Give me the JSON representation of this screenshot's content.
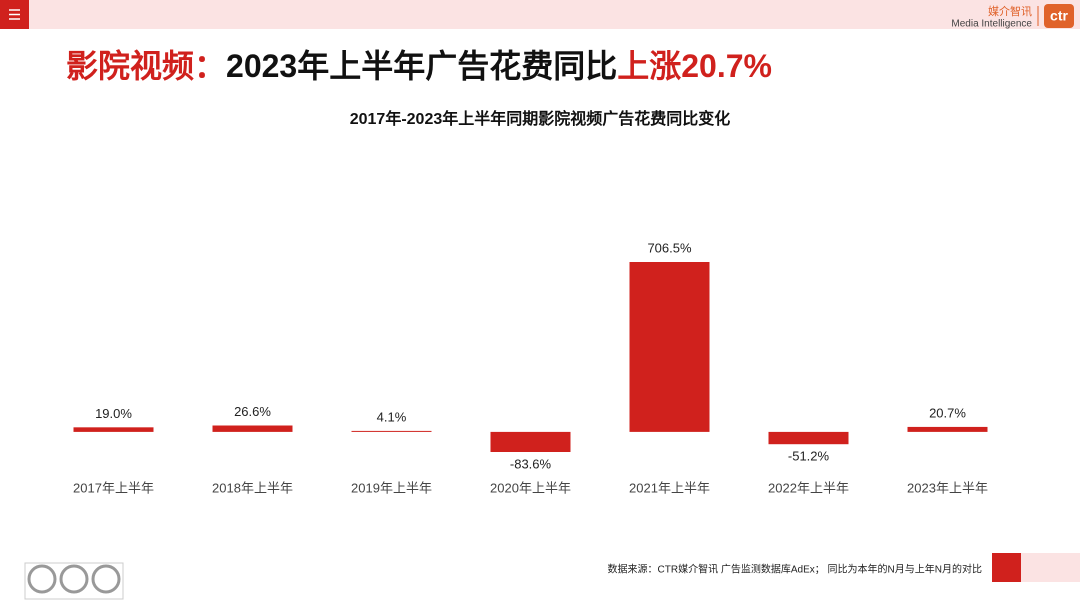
{
  "header": {
    "brand_cn": "媒介智讯",
    "brand_en": "Media Intelligence",
    "logo": "ctr"
  },
  "headline": {
    "prefix": "影院视频：",
    "middle": "2023年上半年广告花费同比",
    "highlight": "上涨20.7%"
  },
  "chart_data": {
    "type": "bar",
    "title": "2017年-2023年上半年同期影院视频广告花费同比变化",
    "categories": [
      "2017年上半年",
      "2018年上半年",
      "2019年上半年",
      "2020年上半年",
      "2021年上半年",
      "2022年上半年",
      "2023年上半年"
    ],
    "values": [
      19.0,
      26.6,
      4.1,
      -83.6,
      706.5,
      -51.2,
      20.7
    ],
    "value_labels": [
      "19.0%",
      "26.6%",
      "4.1%",
      "-83.6%",
      "706.5%",
      "-51.2%",
      "20.7%"
    ],
    "color": "#d0211d"
  },
  "footer": {
    "source": "数据来源：CTR媒介智讯 广告监测数据库AdEx；  同比为本年的N月与上年N月的对比"
  }
}
